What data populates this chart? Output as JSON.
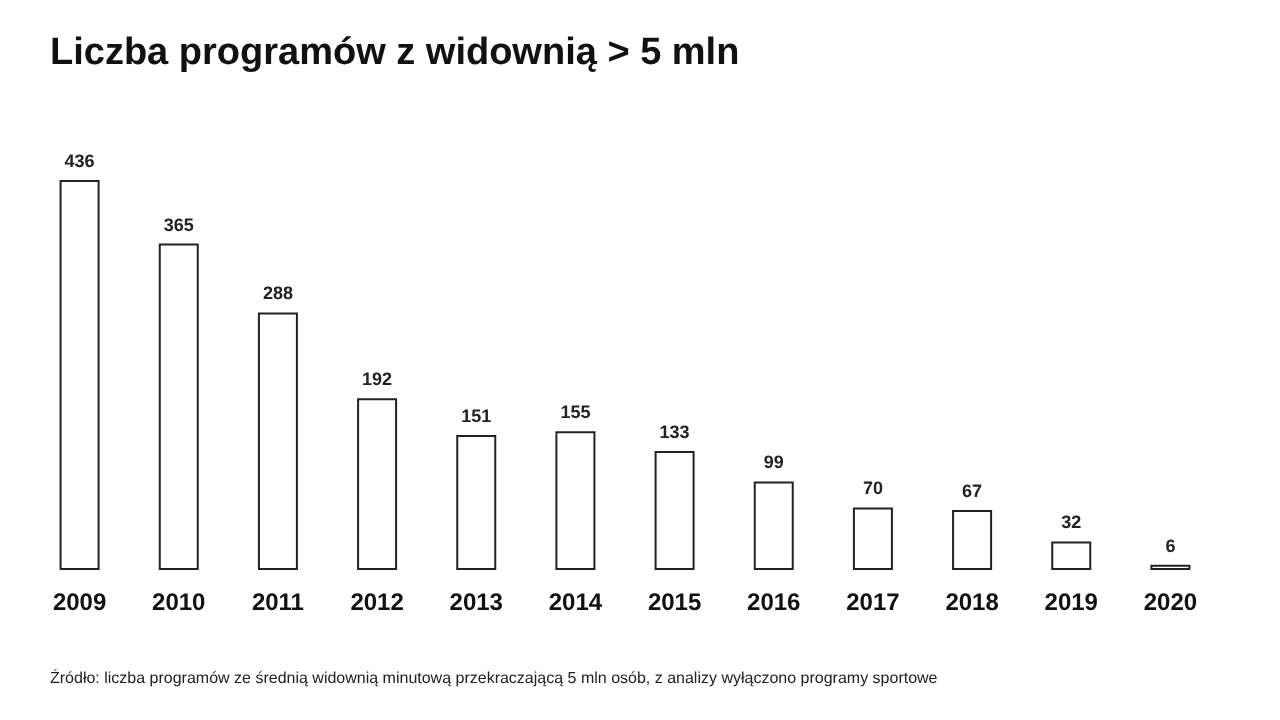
{
  "chart_data": {
    "type": "bar",
    "title": "Liczba programów z widownią > 5 mln",
    "categories": [
      "2009",
      "2010",
      "2011",
      "2012",
      "2013",
      "2014",
      "2015",
      "2016",
      "2017",
      "2018",
      "2019",
      "2020"
    ],
    "values": [
      436,
      365,
      288,
      192,
      151,
      155,
      133,
      99,
      70,
      67,
      32,
      6
    ],
    "color": "#ffffff",
    "data_labels": true,
    "annotations": [
      "Źródło: liczba programów ze średnią widownią minutową przekraczającą 5 mln osób, z analizy wyłączono programy sportowe"
    ]
  }
}
